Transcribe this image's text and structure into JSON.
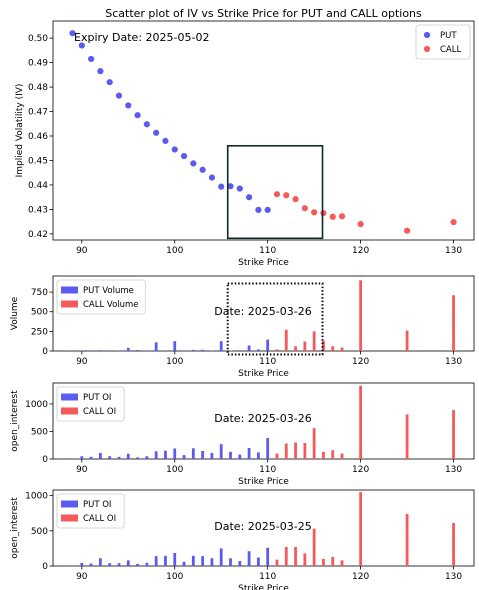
{
  "chart_data": [
    {
      "type": "scatter",
      "title": "Scatter plot of IV vs Strike Price for PUT and CALL options",
      "annotation": "Expiry Date: 2025-05-02",
      "xlabel": "Strike Price",
      "ylabel": "Implied Volatility (IV)",
      "xlim": [
        86.9,
        132.2
      ],
      "ylim": [
        0.4175,
        0.507
      ],
      "xticks": [
        90,
        100,
        110,
        120,
        130
      ],
      "yticks": [
        0.42,
        0.43,
        0.44,
        0.45,
        0.46,
        0.47,
        0.48,
        0.49,
        0.5
      ],
      "ytick_labels": [
        "0.42",
        "0.43",
        "0.44",
        "0.45",
        "0.46",
        "0.47",
        "0.48",
        "0.49",
        "0.50"
      ],
      "legend": "top-right",
      "highlight_box": {
        "x": [
          105.7,
          115.9
        ],
        "y": [
          0.4182,
          0.456
        ]
      },
      "series": [
        {
          "name": "PUT",
          "color": "#5b5bf0",
          "x": [
            89,
            90,
            91,
            92,
            93,
            94,
            95,
            96,
            97,
            98,
            99,
            100,
            101,
            102,
            103,
            104,
            105,
            106,
            107,
            108,
            109,
            110
          ],
          "y": [
            0.502,
            0.497,
            0.4915,
            0.4865,
            0.482,
            0.4765,
            0.4725,
            0.4685,
            0.4648,
            0.4613,
            0.458,
            0.4545,
            0.4518,
            0.4488,
            0.4462,
            0.443,
            0.4393,
            0.4395,
            0.4385,
            0.435,
            0.4298,
            0.4298
          ]
        },
        {
          "name": "CALL",
          "color": "#f55a5a",
          "x": [
            111,
            112,
            113,
            114,
            115,
            116,
            117,
            118,
            120,
            125,
            130
          ],
          "y": [
            0.4362,
            0.4358,
            0.4342,
            0.4305,
            0.4288,
            0.4285,
            0.427,
            0.4272,
            0.424,
            0.4213,
            0.4248
          ]
        }
      ]
    },
    {
      "type": "bar",
      "annotation": "Date: 2025-03-26",
      "xlabel": "Strike Price",
      "ylabel": "Volume",
      "xlim": [
        86.9,
        132.2
      ],
      "ylim": [
        0,
        955
      ],
      "xticks": [
        90,
        100,
        110,
        120,
        130
      ],
      "yticks": [
        0,
        250,
        500,
        750
      ],
      "ytick_labels": [
        "0",
        "250",
        "500",
        "750"
      ],
      "legend": "top-left",
      "highlight_box": {
        "x": [
          105.7,
          115.9
        ],
        "y": [
          -45,
          860
        ]
      },
      "series": [
        {
          "name": "PUT Volume",
          "color": "#5b5bf0",
          "x": [
            89,
            90,
            91,
            92,
            93,
            94,
            95,
            96,
            97,
            98,
            99,
            100,
            101,
            102,
            103,
            104,
            105,
            106,
            107,
            108,
            109,
            110
          ],
          "values": [
            2,
            4,
            8,
            10,
            2,
            4,
            40,
            12,
            4,
            110,
            3,
            125,
            3,
            15,
            15,
            5,
            125,
            5,
            10,
            70,
            20,
            145
          ]
        },
        {
          "name": "CALL Volume",
          "color": "#f55a5a",
          "x": [
            111,
            112,
            113,
            114,
            115,
            116,
            117,
            118,
            120,
            125,
            130
          ],
          "values": [
            20,
            270,
            60,
            120,
            250,
            130,
            60,
            45,
            900,
            260,
            710
          ]
        }
      ]
    },
    {
      "type": "bar",
      "annotation": "Date: 2025-03-26",
      "xlabel": "Strike Price",
      "ylabel": "open_interest",
      "xlim": [
        86.9,
        132.2
      ],
      "ylim": [
        0,
        1380
      ],
      "xticks": [
        90,
        100,
        110,
        120,
        130
      ],
      "yticks": [
        0,
        500,
        1000
      ],
      "ytick_labels": [
        "0",
        "500",
        "1000"
      ],
      "legend": "top-left",
      "series": [
        {
          "name": "PUT OI",
          "color": "#5b5bf0",
          "x": [
            89,
            90,
            91,
            92,
            93,
            94,
            95,
            96,
            97,
            98,
            99,
            100,
            101,
            102,
            103,
            104,
            105,
            106,
            107,
            108,
            109,
            110
          ],
          "values": [
            5,
            50,
            40,
            110,
            50,
            40,
            95,
            30,
            50,
            140,
            150,
            190,
            70,
            195,
            145,
            110,
            270,
            130,
            80,
            200,
            120,
            380
          ]
        },
        {
          "name": "CALL OI",
          "color": "#f55a5a",
          "x": [
            111,
            112,
            113,
            114,
            115,
            116,
            117,
            118,
            120,
            125,
            130
          ],
          "values": [
            100,
            280,
            300,
            290,
            560,
            130,
            160,
            100,
            1330,
            810,
            890
          ]
        }
      ]
    },
    {
      "type": "bar",
      "annotation": "Date: 2025-03-25",
      "xlabel": "Strike Price",
      "ylabel": "open_interest",
      "xlim": [
        86.9,
        132.2
      ],
      "ylim": [
        0,
        1080
      ],
      "xticks": [
        90,
        100,
        110,
        120,
        130
      ],
      "yticks": [
        0,
        500,
        1000
      ],
      "ytick_labels": [
        "0",
        "500",
        "1000"
      ],
      "legend": "top-left",
      "series": [
        {
          "name": "PUT OI",
          "color": "#5b5bf0",
          "x": [
            89,
            90,
            91,
            92,
            93,
            94,
            95,
            96,
            97,
            98,
            99,
            100,
            101,
            102,
            103,
            104,
            105,
            106,
            107,
            108,
            109,
            110
          ],
          "values": [
            5,
            45,
            35,
            110,
            40,
            40,
            80,
            30,
            45,
            140,
            145,
            185,
            60,
            145,
            140,
            110,
            250,
            110,
            70,
            210,
            120,
            260
          ]
        },
        {
          "name": "CALL OI",
          "color": "#f55a5a",
          "x": [
            111,
            112,
            113,
            114,
            115,
            116,
            117,
            118,
            120,
            125,
            130
          ],
          "values": [
            90,
            270,
            270,
            180,
            530,
            100,
            130,
            80,
            1050,
            740,
            610
          ]
        }
      ]
    }
  ]
}
